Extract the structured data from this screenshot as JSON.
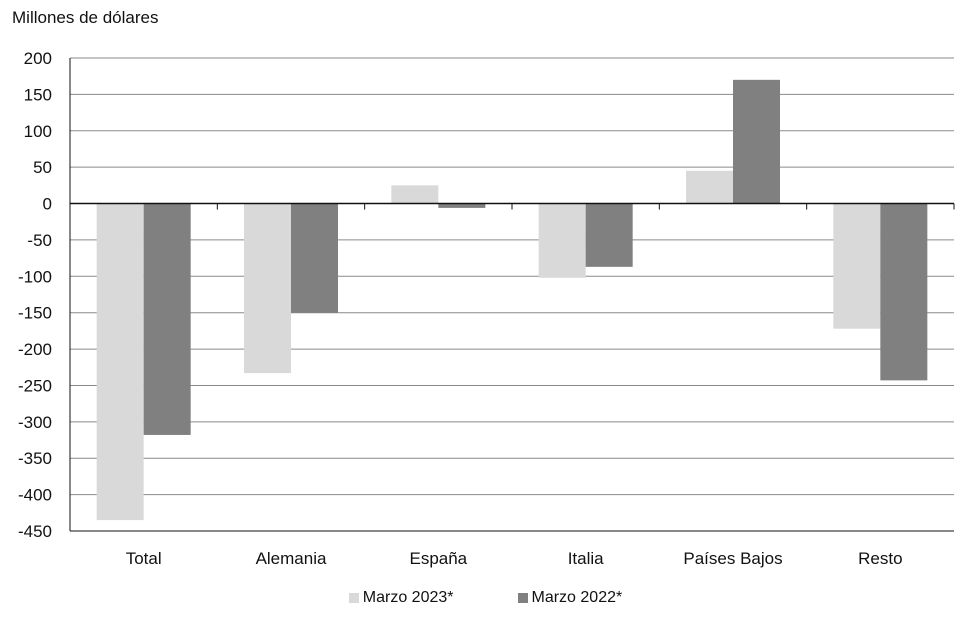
{
  "chart_data": {
    "type": "bar",
    "ylabel": "Millones de dólares",
    "categories": [
      "Total",
      "Alemania",
      "España",
      "Italia",
      "Países Bajos",
      "Resto"
    ],
    "series": [
      {
        "name": "Marzo 2023*",
        "color": "#d9d9d9",
        "values": [
          -435,
          -233,
          25,
          -102,
          45,
          -172
        ]
      },
      {
        "name": "Marzo 2022*",
        "color": "#808080",
        "values": [
          -318,
          -150,
          -6,
          -87,
          170,
          -243
        ]
      }
    ],
    "ylim": [
      -450,
      200
    ],
    "yticks": [
      200,
      150,
      100,
      50,
      0,
      -50,
      -100,
      -150,
      -200,
      -250,
      -300,
      -350,
      -400,
      -450
    ],
    "grid": true,
    "legend_position": "bottom"
  }
}
